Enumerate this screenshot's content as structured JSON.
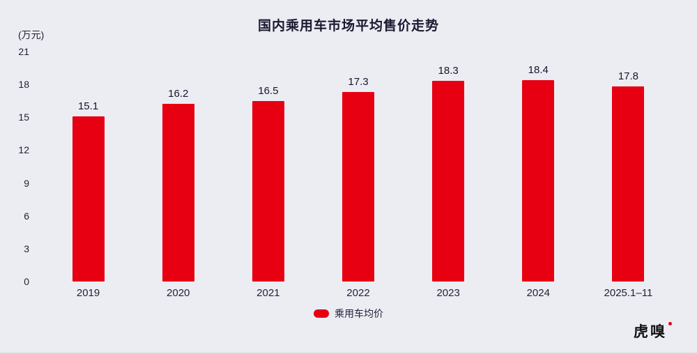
{
  "page": {
    "background": "#ECEDF3"
  },
  "chart_data": {
    "type": "bar",
    "title": "国内乘用车市场平均售价走势",
    "unit_label": "(万元)",
    "categories": [
      "2019",
      "2020",
      "2021",
      "2022",
      "2023",
      "2024",
      "2025.1–11"
    ],
    "values": [
      15.1,
      16.2,
      16.5,
      17.3,
      18.3,
      18.4,
      17.8
    ],
    "value_labels": [
      "15.1",
      "16.2",
      "16.5",
      "17.3",
      "18.3",
      "18.4",
      "17.8"
    ],
    "xlabel": "",
    "ylabel": "万元",
    "ylim": [
      0,
      21
    ],
    "yticks": [
      0,
      3,
      6,
      9,
      12,
      15,
      18,
      21
    ],
    "grid": false,
    "bar_color": "#E60012",
    "legend": {
      "position": "bottom",
      "label": "乘用车均价",
      "swatch_color": "#E60012"
    }
  },
  "footer": {
    "logo_text": "虎嗅"
  }
}
